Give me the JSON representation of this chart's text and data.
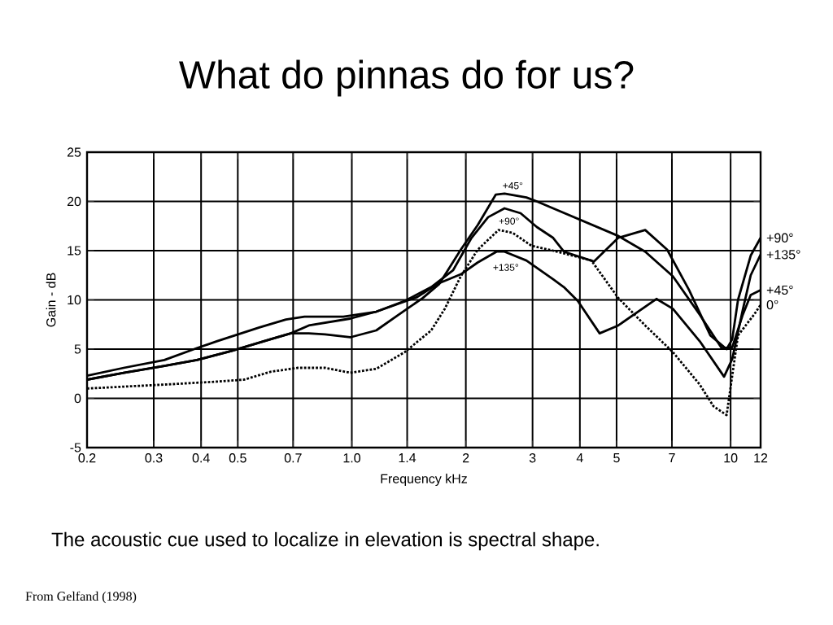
{
  "chart_data": {
    "type": "line",
    "title": "What do pinnas do for us?",
    "xlabel": "Frequency kHz",
    "ylabel": "Gain - dB",
    "log": "x",
    "grid": true,
    "marker": "none",
    "xlim": [
      0.2,
      12
    ],
    "ylim": [
      -5,
      25
    ],
    "xticks": [
      0.2,
      0.3,
      0.4,
      0.5,
      0.7,
      {
        "value": 1,
        "label": "1.0"
      },
      1.4,
      2,
      3,
      4,
      5,
      7,
      10,
      12
    ],
    "yticks": [
      -5,
      0,
      5,
      10,
      15,
      20,
      25
    ],
    "series": [
      {
        "name": "+90°",
        "color": "#000000",
        "line_style": "solid",
        "x": [
          0.2,
          0.25,
          0.32,
          0.39,
          0.48,
          0.61,
          0.69,
          0.77,
          0.99,
          1.16,
          1.38,
          1.62,
          1.85,
          2.07,
          2.29,
          2.53,
          2.79,
          3.08,
          3.4,
          3.63,
          4.36,
          5.05,
          5.95,
          6.8,
          7.77,
          8.84,
          9.76,
          10.1,
          10.46,
          11.3,
          12
        ],
        "values": [
          1.9,
          2.6,
          3.3,
          3.9,
          4.8,
          6.0,
          6.6,
          7.4,
          8.1,
          8.8,
          9.9,
          11.3,
          13.0,
          16.3,
          18.4,
          19.3,
          18.8,
          17.4,
          16.3,
          14.9,
          13.9,
          16.3,
          17.1,
          15.1,
          11.0,
          6.4,
          5.0,
          6.0,
          10.0,
          14.5,
          16.3
        ]
      },
      {
        "name": "+135°",
        "color": "#000000",
        "line_style": "solid",
        "x": [
          0.2,
          0.25,
          0.32,
          0.39,
          0.44,
          0.57,
          0.67,
          0.75,
          0.85,
          0.95,
          1.16,
          1.49,
          1.7,
          1.94,
          2.15,
          2.41,
          2.53,
          2.89,
          3.4,
          3.63,
          3.95,
          4.51,
          5.05,
          6.37,
          7.04,
          8.29,
          9.61,
          10.1,
          10.77,
          11.3,
          12
        ],
        "values": [
          2.3,
          3.1,
          3.9,
          5.1,
          5.8,
          7.2,
          8.0,
          8.3,
          8.3,
          8.3,
          8.8,
          10.3,
          11.7,
          12.6,
          13.8,
          14.9,
          14.9,
          14.0,
          12.1,
          11.3,
          9.9,
          6.6,
          7.4,
          10.1,
          9.1,
          5.8,
          2.2,
          4.0,
          9.0,
          12.5,
          14.6
        ]
      },
      {
        "name": "+45°",
        "color": "#000000",
        "line_style": "solid",
        "x": [
          0.2,
          0.25,
          0.32,
          0.39,
          0.48,
          0.61,
          0.69,
          0.77,
          0.85,
          0.99,
          1.16,
          1.33,
          1.54,
          1.7,
          1.94,
          2.15,
          2.4,
          2.53,
          2.89,
          3.08,
          3.4,
          5.05,
          5.95,
          7.04,
          8.29,
          9.47,
          10.1,
          10.77,
          11.3,
          12
        ],
        "values": [
          1.9,
          2.6,
          3.3,
          3.9,
          4.8,
          6.0,
          6.6,
          6.6,
          6.5,
          6.2,
          6.9,
          8.5,
          10.2,
          11.6,
          15.1,
          17.6,
          20.7,
          20.8,
          20.4,
          20.0,
          19.3,
          16.5,
          14.9,
          12.4,
          8.5,
          5.1,
          5.2,
          8.5,
          10.5,
          11.0
        ]
      },
      {
        "name": "0°",
        "color": "#000000",
        "line_style": "dotted",
        "x": [
          0.2,
          0.32,
          0.44,
          0.52,
          0.61,
          0.72,
          0.85,
          0.99,
          1.16,
          1.38,
          1.62,
          1.76,
          1.94,
          2.15,
          2.44,
          2.66,
          2.98,
          3.4,
          4.29,
          5.05,
          5.95,
          7.04,
          8.29,
          9.01,
          9.76,
          10.46,
          11.53,
          12
        ],
        "values": [
          1.0,
          1.4,
          1.7,
          1.9,
          2.7,
          3.1,
          3.1,
          2.6,
          3.0,
          4.7,
          6.9,
          9.1,
          12.4,
          15.1,
          17.1,
          16.8,
          15.5,
          15.0,
          14.0,
          10.2,
          7.4,
          4.7,
          1.4,
          -0.8,
          -1.7,
          6.4,
          8.5,
          9.5
        ]
      }
    ],
    "annotations": [
      "The acoustic cue used to localize in elevation is spectral shape.",
      "From Gelfand (1998)",
      {
        "text": "+45°",
        "x": 2.66,
        "y": 21.6
      },
      {
        "text": "+90°",
        "x": 2.6,
        "y": 18.0
      },
      {
        "text": "+135°",
        "x": 2.55,
        "y": 13.3
      }
    ]
  }
}
